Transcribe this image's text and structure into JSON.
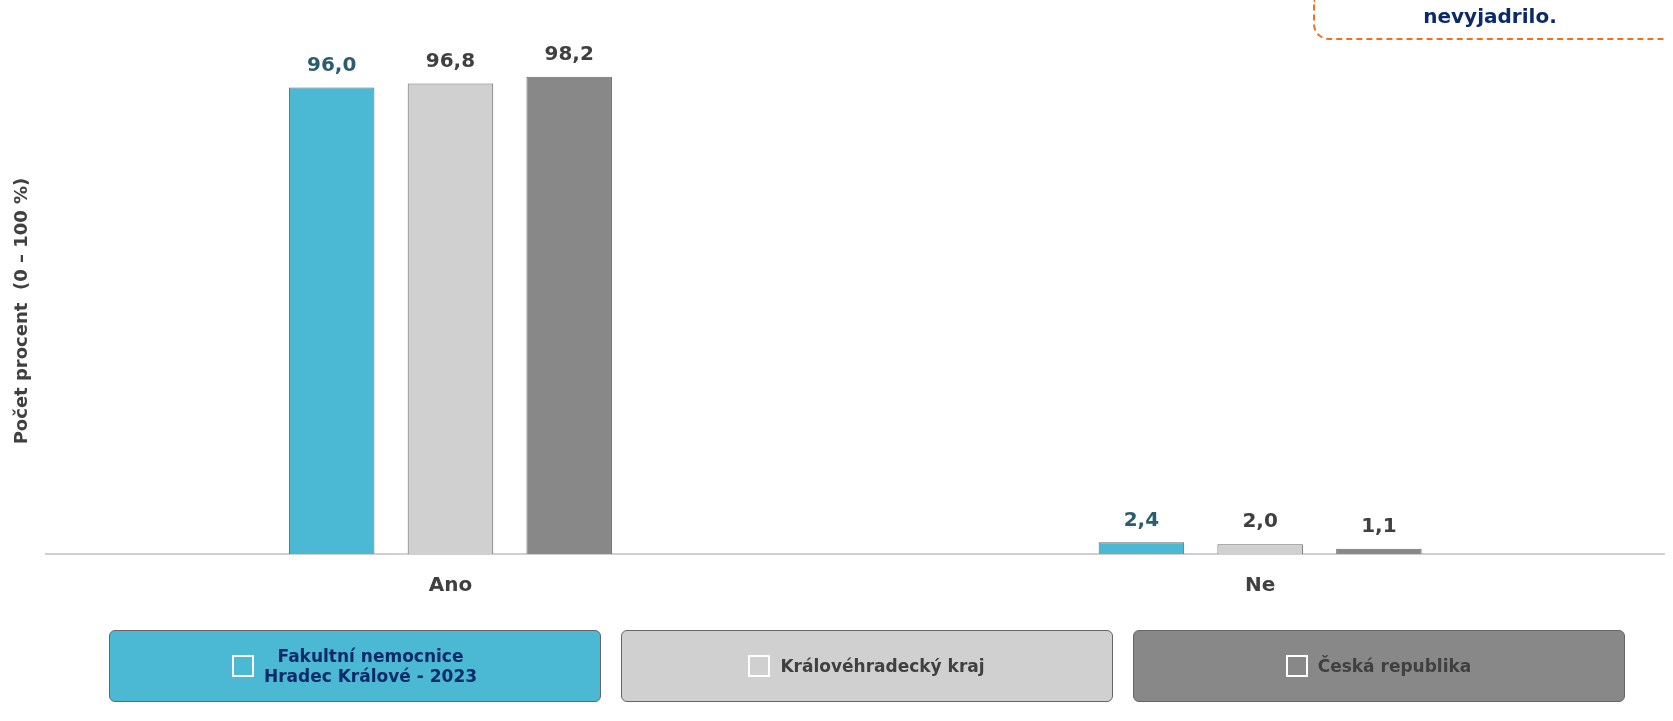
{
  "chart_data": {
    "type": "bar",
    "ylabel": "Počet procent  (0 – 100 %)",
    "categories": [
      "Ano",
      "Ne"
    ],
    "series": [
      {
        "name": "Fakultní nemocnice\nHradec Králové - 2023",
        "color": "#4bb8d4",
        "values": [
          96.0,
          2.4
        ],
        "value_labels": [
          "96,0",
          "2,4"
        ]
      },
      {
        "name": "Královéhradecký kraj",
        "color": "#d0d0d0",
        "values": [
          96.8,
          2.0
        ],
        "value_labels": [
          "96,8",
          "2,0"
        ]
      },
      {
        "name": "Česká republika",
        "color": "#888888",
        "values": [
          98.2,
          1.1
        ],
        "value_labels": [
          "98,2",
          "1,1"
        ]
      }
    ],
    "legend": "bottom",
    "grid": false,
    "annotations": [
      "nevyjadrilo."
    ]
  }
}
